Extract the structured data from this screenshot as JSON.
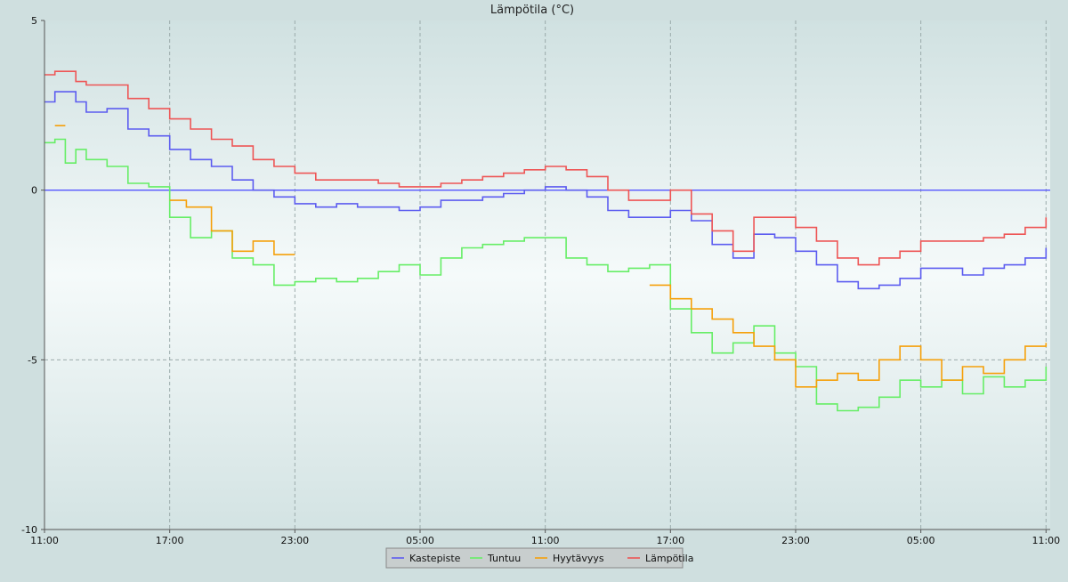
{
  "chart_data": {
    "type": "line",
    "title": "Lämpötila (°C)",
    "xlabel": "",
    "ylabel": "",
    "ylim": [
      -10,
      5
    ],
    "y_ticks": [
      5,
      0,
      -5,
      -10
    ],
    "x_range_hours": [
      0,
      48.2
    ],
    "x_ticks": [
      {
        "h": 0,
        "label": "11:00"
      },
      {
        "h": 6,
        "label": "17:00"
      },
      {
        "h": 12,
        "label": "23:00"
      },
      {
        "h": 18,
        "label": "05:00"
      },
      {
        "h": 24,
        "label": "11:00"
      },
      {
        "h": 30,
        "label": "17:00"
      },
      {
        "h": 36,
        "label": "23:00"
      },
      {
        "h": 42,
        "label": "05:00"
      },
      {
        "h": 48,
        "label": "11:00"
      }
    ],
    "grid": true,
    "legend_position": "bottom-center",
    "reference_line": {
      "y": 0,
      "color": "#5555ff"
    },
    "series": [
      {
        "name": "Kastepiste",
        "color": "#5c5cf0",
        "x": [
          0,
          0.5,
          1,
          1.5,
          2,
          3,
          4,
          5,
          6,
          7,
          8,
          9,
          10,
          11,
          12,
          13,
          14,
          15,
          16,
          17,
          18,
          19,
          20,
          21,
          22,
          23,
          24,
          25,
          26,
          27,
          28,
          29,
          30,
          31,
          32,
          33,
          34,
          35,
          36,
          37,
          38,
          39,
          40,
          41,
          42,
          43,
          44,
          45,
          46,
          47,
          48
        ],
        "y": [
          2.6,
          2.9,
          2.9,
          2.6,
          2.3,
          2.4,
          1.8,
          1.6,
          1.2,
          0.9,
          0.7,
          0.3,
          0.0,
          -0.2,
          -0.4,
          -0.5,
          -0.4,
          -0.5,
          -0.5,
          -0.6,
          -0.5,
          -0.3,
          -0.3,
          -0.2,
          -0.1,
          0.0,
          0.1,
          0.0,
          -0.2,
          -0.6,
          -0.8,
          -0.8,
          -0.6,
          -0.9,
          -1.6,
          -2.0,
          -1.3,
          -1.4,
          -1.8,
          -2.2,
          -2.7,
          -2.9,
          -2.8,
          -2.6,
          -2.3,
          -2.3,
          -2.5,
          -2.3,
          -2.2,
          -2.0,
          -1.7
        ]
      },
      {
        "name": "Tuntuu",
        "color": "#66ee66",
        "x": [
          0,
          0.5,
          1,
          1.5,
          2,
          3,
          4,
          5,
          6,
          7,
          8,
          9,
          10,
          11,
          12,
          13,
          14,
          15,
          16,
          17,
          18,
          19,
          20,
          21,
          22,
          23,
          24,
          25,
          26,
          27,
          28,
          29,
          30,
          31,
          32,
          33,
          34,
          35,
          36,
          37,
          38,
          39,
          40,
          41,
          42,
          43,
          44,
          45,
          46,
          47,
          48
        ],
        "y": [
          1.4,
          1.5,
          0.8,
          1.2,
          0.9,
          0.7,
          0.2,
          0.1,
          -0.8,
          -1.4,
          -1.2,
          -2.0,
          -2.2,
          -2.8,
          -2.7,
          -2.6,
          -2.7,
          -2.6,
          -2.4,
          -2.2,
          -2.5,
          -2.0,
          -1.7,
          -1.6,
          -1.5,
          -1.4,
          -1.4,
          -2.0,
          -2.2,
          -2.4,
          -2.3,
          -2.2,
          -3.5,
          -4.2,
          -4.8,
          -4.5,
          -4.0,
          -4.8,
          -5.2,
          -6.3,
          -6.5,
          -6.4,
          -6.1,
          -5.6,
          -5.8,
          -5.6,
          -6.0,
          -5.5,
          -5.8,
          -5.6,
          -5.2
        ]
      },
      {
        "name": "Hyytävyys",
        "color": "#f5a00a",
        "x": [
          0,
          0.5,
          1,
          1.5,
          2,
          3,
          4,
          5,
          6,
          6.8,
          7.5,
          8,
          9,
          10,
          11,
          12,
          13,
          14,
          15,
          16,
          17,
          18,
          19,
          20,
          21,
          22,
          23,
          24,
          25,
          26,
          27,
          28,
          29,
          30,
          31,
          32,
          33,
          34,
          35,
          36,
          37,
          38,
          39,
          40,
          41,
          42,
          43,
          44,
          45,
          46,
          47,
          48
        ],
        "y": [
          null,
          1.9,
          1.9,
          null,
          null,
          null,
          null,
          null,
          -0.3,
          -0.5,
          -0.5,
          -1.2,
          -1.8,
          -1.5,
          -1.9,
          -1.9,
          null,
          null,
          null,
          null,
          null,
          null,
          null,
          null,
          null,
          null,
          null,
          null,
          null,
          null,
          null,
          null,
          -2.8,
          -3.2,
          -3.5,
          -3.8,
          -4.2,
          -4.6,
          -5.0,
          -5.8,
          -5.6,
          -5.4,
          -5.6,
          -5.0,
          -4.6,
          -5.0,
          -5.6,
          -5.2,
          -5.4,
          -5.0,
          -4.6,
          -4.5
        ]
      },
      {
        "name": "Lämpötila",
        "color": "#ee5555",
        "x": [
          0,
          0.5,
          1,
          1.5,
          2,
          3,
          4,
          5,
          6,
          7,
          8,
          9,
          10,
          11,
          12,
          13,
          14,
          15,
          16,
          17,
          18,
          19,
          20,
          21,
          22,
          23,
          24,
          25,
          26,
          27,
          28,
          29,
          30,
          31,
          32,
          33,
          34,
          35,
          36,
          37,
          38,
          39,
          40,
          41,
          42,
          43,
          44,
          45,
          46,
          47,
          48
        ],
        "y": [
          3.4,
          3.5,
          3.5,
          3.2,
          3.1,
          3.1,
          2.7,
          2.4,
          2.1,
          1.8,
          1.5,
          1.3,
          0.9,
          0.7,
          0.5,
          0.3,
          0.3,
          0.3,
          0.2,
          0.1,
          0.1,
          0.2,
          0.3,
          0.4,
          0.5,
          0.6,
          0.7,
          0.6,
          0.4,
          0.0,
          -0.3,
          -0.3,
          0.0,
          -0.7,
          -1.2,
          -1.8,
          -0.8,
          -0.8,
          -1.1,
          -1.5,
          -2.0,
          -2.2,
          -2.0,
          -1.8,
          -1.5,
          -1.5,
          -1.5,
          -1.4,
          -1.3,
          -1.1,
          -0.8
        ]
      }
    ]
  }
}
